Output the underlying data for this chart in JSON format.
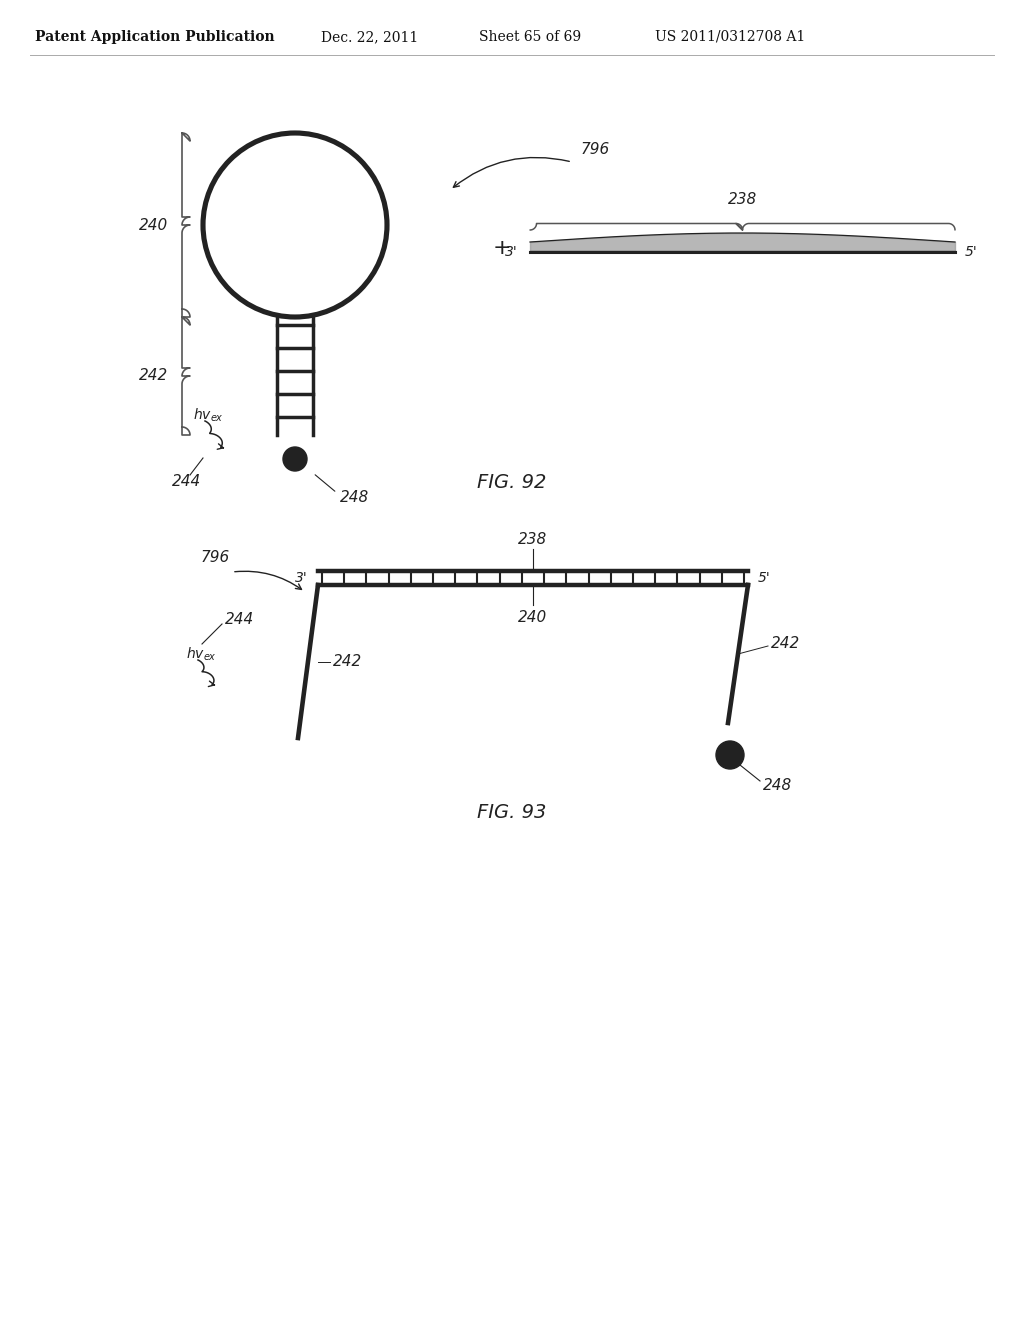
{
  "bg_color": "#ffffff",
  "header_text": "Patent Application Publication",
  "header_date": "Dec. 22, 2011",
  "header_sheet": "Sheet 65 of 69",
  "header_patent": "US 2011/0312708 A1",
  "fig92_label": "FIG. 92",
  "fig93_label": "FIG. 93",
  "label_240": "240",
  "label_242": "242",
  "label_244": "244",
  "label_248": "248",
  "label_238": "238",
  "label_796": "796",
  "line_color": "#222222",
  "line_width": 2.5,
  "ladder_rung_count_fig92": 5,
  "ladder_rung_count_fig93": 20
}
